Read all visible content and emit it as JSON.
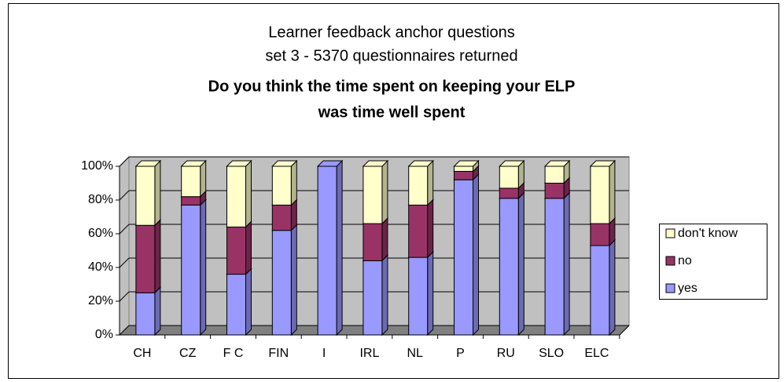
{
  "chart_data": {
    "type": "bar3d_stacked",
    "title": [
      "Learner feedback anchor questions",
      "set 3 - 5370 questionnaires returned"
    ],
    "subtitle": [
      "Do you think the time spent on keeping your ELP",
      "was time well spent"
    ],
    "categories": [
      "CH",
      "CZ",
      "F C",
      "FIN",
      "I",
      "IRL",
      "NL",
      "P",
      "RU",
      "SLO",
      "ELC"
    ],
    "series": [
      {
        "name": "yes",
        "color": "#9999ff",
        "values": [
          25,
          77,
          36,
          62,
          100,
          44,
          46,
          92,
          81,
          81,
          53
        ]
      },
      {
        "name": "no",
        "color": "#993366",
        "values": [
          40,
          5,
          28,
          15,
          0,
          22,
          31,
          5,
          6,
          9,
          13
        ]
      },
      {
        "name": "don't know",
        "color": "#ffffcc",
        "values": [
          35,
          18,
          36,
          23,
          0,
          34,
          23,
          3,
          13,
          10,
          34
        ]
      }
    ],
    "ylim": [
      0,
      100
    ],
    "yticks": [
      {
        "value": 0,
        "label": "0%"
      },
      {
        "value": 20,
        "label": "20%"
      },
      {
        "value": 40,
        "label": "40%"
      },
      {
        "value": 60,
        "label": "60%"
      },
      {
        "value": 80,
        "label": "80%"
      },
      {
        "value": 100,
        "label": "100%"
      }
    ],
    "grid": true,
    "legend": "right"
  }
}
